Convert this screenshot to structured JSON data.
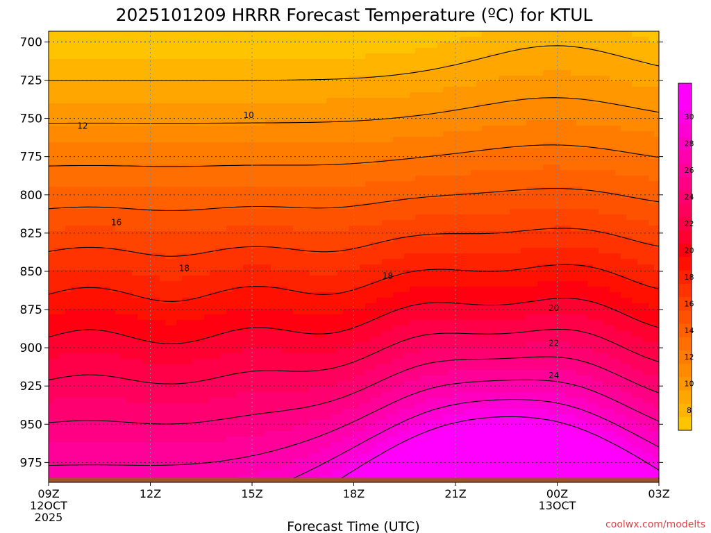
{
  "chart_data": {
    "type": "heatmap",
    "title": "2025101209 HRRR Forecast Temperature (ºC) for KTUL",
    "xlabel": "Forecast Time (UTC)",
    "ylabel": "",
    "x_ticks": [
      "09Z",
      "12Z",
      "15Z",
      "18Z",
      "21Z",
      "00Z",
      "03Z"
    ],
    "x_date_labels": [
      {
        "tick": "09Z",
        "lines": [
          "12OCT",
          "2025"
        ]
      },
      {
        "tick": "00Z",
        "lines": [
          "13OCT"
        ]
      }
    ],
    "x_hours": [
      0,
      3,
      6,
      9,
      12,
      15,
      18
    ],
    "xlim": [
      0,
      18
    ],
    "y_ticks": [
      700,
      725,
      750,
      775,
      800,
      825,
      850,
      875,
      900,
      925,
      950,
      975
    ],
    "y_unit": "hPa",
    "ylim": [
      988,
      693
    ],
    "surface_pressure_hPa": 985,
    "colorbar": {
      "ticks": [
        8,
        10,
        12,
        14,
        16,
        18,
        20,
        22,
        24,
        26,
        28,
        30
      ],
      "levels": [
        7,
        8,
        9,
        10,
        11,
        12,
        13,
        14,
        15,
        16,
        17,
        18,
        19,
        20,
        21,
        22,
        23,
        24,
        25,
        26,
        27,
        28,
        29,
        30,
        31,
        32
      ],
      "colors": [
        "#ffc400",
        "#ffb500",
        "#ffa600",
        "#ff9800",
        "#ff8a00",
        "#ff7c00",
        "#ff6e00",
        "#ff6000",
        "#ff5200",
        "#ff4400",
        "#ff3300",
        "#ff2200",
        "#ff1000",
        "#ff0010",
        "#ff0030",
        "#ff0048",
        "#ff005c",
        "#ff0070",
        "#ff0084",
        "#ff0098",
        "#ff00ac",
        "#ff00c0",
        "#ff00d4",
        "#ff00e6",
        "#ff00f8",
        "#ff00ff"
      ]
    },
    "contour_labels": [
      {
        "text": "10",
        "hour": 5.9,
        "p": 748
      },
      {
        "text": "12",
        "hour": 1.0,
        "p": 755
      },
      {
        "text": "16",
        "hour": 2.0,
        "p": 818
      },
      {
        "text": "18",
        "hour": 4.0,
        "p": 848
      },
      {
        "text": "18",
        "hour": 10.0,
        "p": 853
      },
      {
        "text": "20",
        "hour": 14.9,
        "p": 874
      },
      {
        "text": "22",
        "hour": 14.9,
        "p": 897
      },
      {
        "text": "24",
        "hour": 14.9,
        "p": 918
      }
    ],
    "grid": true,
    "credit": "coolwx.com/modelts"
  },
  "colors": {
    "ground": "#a0522d",
    "background": "#ffffff",
    "contour_line": "#000000",
    "credit_text": "#e04040"
  }
}
